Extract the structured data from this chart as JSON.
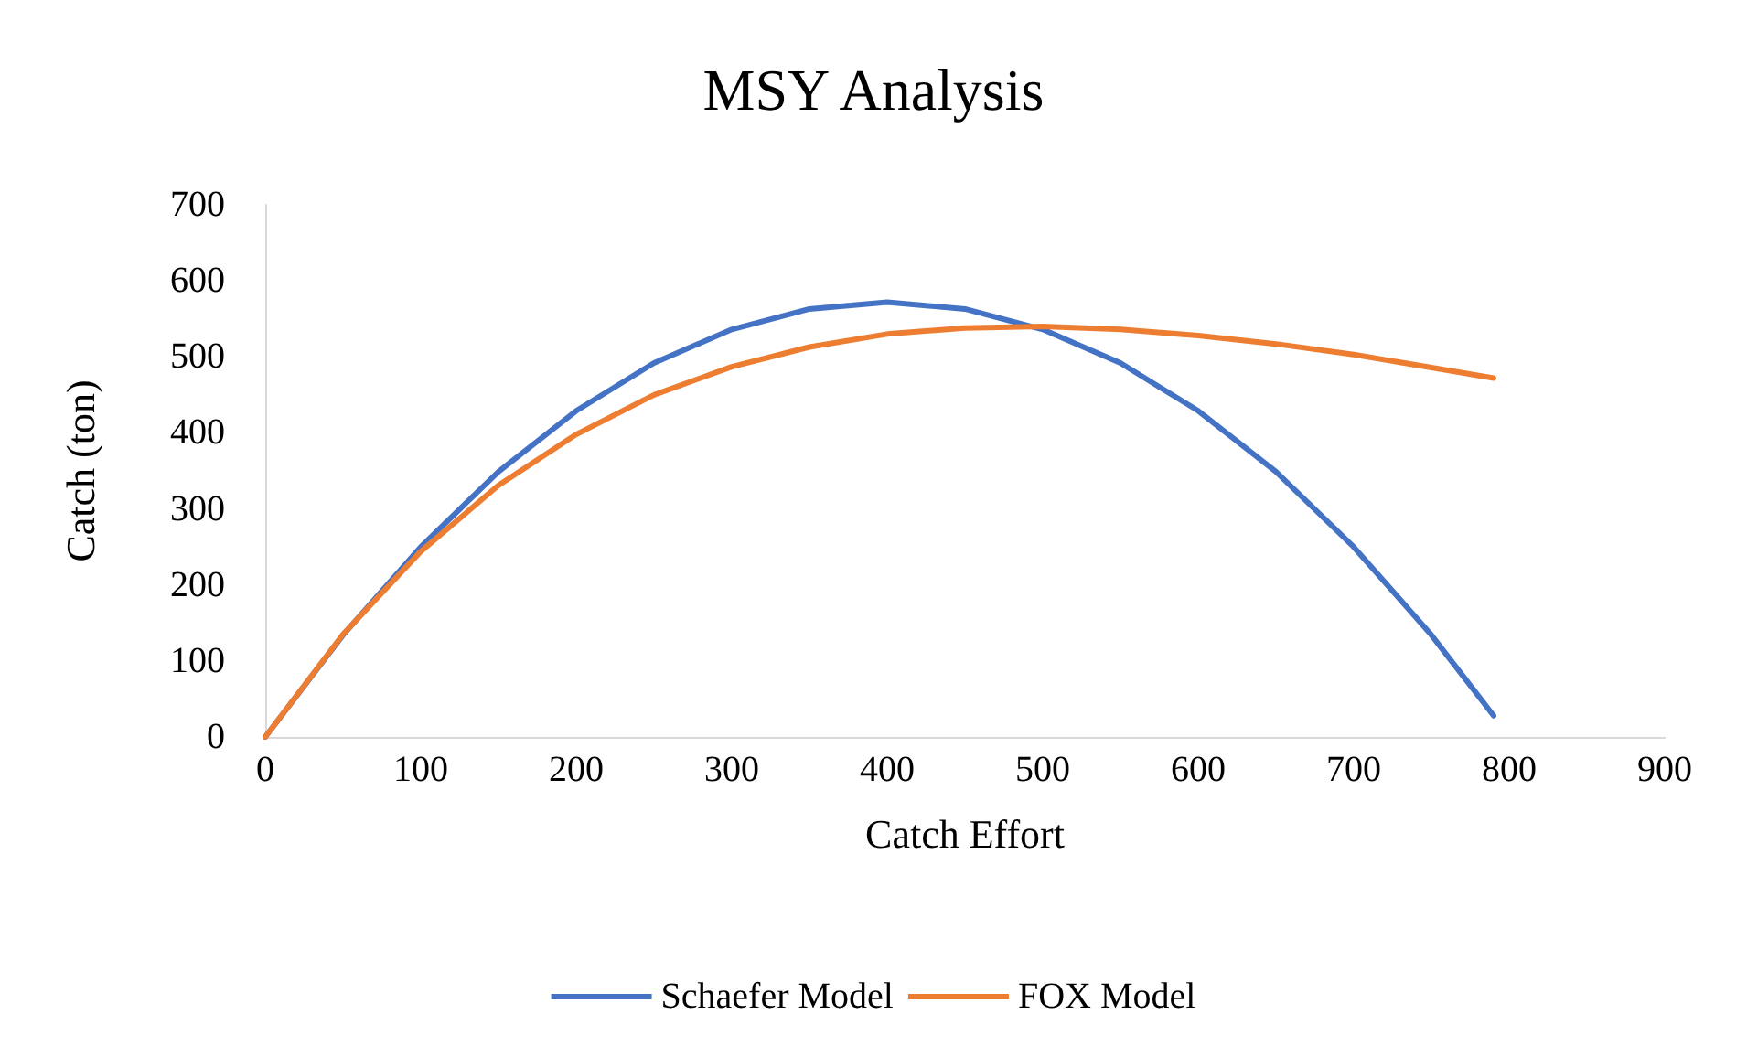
{
  "chart_data": {
    "type": "line",
    "title": "MSY Analysis",
    "xlabel": "Catch Effort",
    "ylabel": "Catch (ton)",
    "x": [
      0,
      50,
      100,
      150,
      200,
      250,
      300,
      350,
      400,
      450,
      500,
      550,
      600,
      650,
      700,
      750,
      790
    ],
    "series": [
      {
        "name": "Schaefer Model",
        "color": "#4472c4",
        "values": [
          0,
          134,
          250,
          349,
          429,
          492,
          536,
          563,
          572,
          563,
          536,
          492,
          429,
          349,
          250,
          134,
          28
        ]
      },
      {
        "name": "FOX Model",
        "color": "#ed7d31",
        "values": [
          0,
          135,
          244,
          331,
          398,
          450,
          487,
          513,
          530,
          538,
          540,
          536,
          528,
          517,
          503,
          486,
          472
        ]
      }
    ],
    "xlim": [
      0,
      900
    ],
    "xticks": [
      0,
      100,
      200,
      300,
      400,
      500,
      600,
      700,
      800,
      900
    ],
    "ylim": [
      0,
      700
    ],
    "yticks": [
      0,
      100,
      200,
      300,
      400,
      500,
      600,
      700
    ],
    "grid": false,
    "legend": "bottom",
    "marker": "none",
    "line_style": "solid"
  }
}
